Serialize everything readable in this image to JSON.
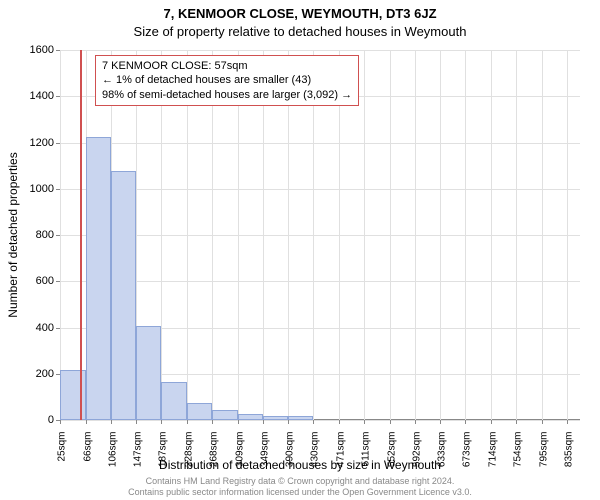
{
  "title_main": "7, KENMOOR CLOSE, WEYMOUTH, DT3 6JZ",
  "title_sub": "Size of property relative to detached houses in Weymouth",
  "y_axis_title": "Number of detached properties",
  "x_axis_title": "Distribution of detached houses by size in Weymouth",
  "footer_line1": "Contains HM Land Registry data © Crown copyright and database right 2024.",
  "footer_line2": "Contains public sector information licensed under the Open Government Licence v3.0.",
  "callout": {
    "line1": "7 KENMOOR CLOSE: 57sqm",
    "line2": "← 1% of detached houses are smaller (43)",
    "line3": "98% of semi-detached houses are larger (3,092) →"
  },
  "marker_x_value": 57,
  "chart": {
    "type": "histogram",
    "background_color": "#ffffff",
    "grid_color": "#e0e0e0",
    "bar_fill": "#c9d5ef",
    "bar_border": "#8ea6d8",
    "marker_color": "#d05050",
    "x_min": 25,
    "x_max": 856,
    "x_ticks": [
      25,
      66,
      106,
      147,
      187,
      228,
      268,
      309,
      349,
      390,
      430,
      471,
      511,
      552,
      592,
      633,
      673,
      714,
      754,
      795,
      835
    ],
    "x_tick_labels": [
      "25sqm",
      "66sqm",
      "106sqm",
      "147sqm",
      "187sqm",
      "228sqm",
      "268sqm",
      "309sqm",
      "349sqm",
      "390sqm",
      "430sqm",
      "471sqm",
      "511sqm",
      "552sqm",
      "592sqm",
      "633sqm",
      "673sqm",
      "714sqm",
      "754sqm",
      "795sqm",
      "835sqm"
    ],
    "y_min": 0,
    "y_max": 1600,
    "y_ticks": [
      0,
      200,
      400,
      600,
      800,
      1000,
      1200,
      1400,
      1600
    ],
    "bars": [
      {
        "x0": 25,
        "x1": 66,
        "value": 215
      },
      {
        "x0": 66,
        "x1": 106,
        "value": 1225
      },
      {
        "x0": 106,
        "x1": 147,
        "value": 1075
      },
      {
        "x0": 147,
        "x1": 187,
        "value": 405
      },
      {
        "x0": 187,
        "x1": 228,
        "value": 165
      },
      {
        "x0": 228,
        "x1": 268,
        "value": 75
      },
      {
        "x0": 268,
        "x1": 309,
        "value": 45
      },
      {
        "x0": 309,
        "x1": 349,
        "value": 25
      },
      {
        "x0": 349,
        "x1": 390,
        "value": 18
      },
      {
        "x0": 390,
        "x1": 430,
        "value": 18
      }
    ]
  }
}
